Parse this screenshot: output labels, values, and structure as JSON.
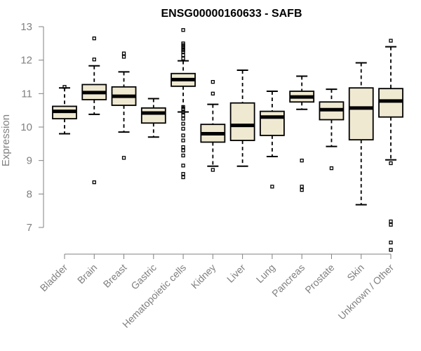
{
  "chart_data": {
    "type": "boxplot",
    "title": "ENSG00000160633 - SAFB",
    "xlabel": "",
    "ylabel": "Expression",
    "ylim": [
      6.2,
      13
    ],
    "yticks": [
      7,
      8,
      9,
      10,
      11,
      12,
      13
    ],
    "grid": false,
    "categories": [
      "Bladder",
      "Brain",
      "Breast",
      "Gastric",
      "Hematopoietic cells",
      "Kidney",
      "Liver",
      "Lung",
      "Pancreas",
      "Prostate",
      "Skin",
      "Unknown / Other"
    ],
    "series": [
      {
        "name": "Bladder",
        "whisker_low": 9.8,
        "q1": 10.25,
        "median": 10.47,
        "q3": 10.62,
        "whisker_high": 11.17,
        "outliers": [
          11.2
        ]
      },
      {
        "name": "Brain",
        "whisker_low": 10.38,
        "q1": 10.82,
        "median": 11.03,
        "q3": 11.27,
        "whisker_high": 11.83,
        "outliers": [
          12.65,
          12.02,
          8.35
        ]
      },
      {
        "name": "Breast",
        "whisker_low": 9.85,
        "q1": 10.65,
        "median": 10.92,
        "q3": 11.2,
        "whisker_high": 11.65,
        "outliers": [
          12.2,
          12.1,
          9.08
        ]
      },
      {
        "name": "Gastric",
        "whisker_low": 9.7,
        "q1": 10.12,
        "median": 10.42,
        "q3": 10.57,
        "whisker_high": 10.85,
        "outliers": []
      },
      {
        "name": "Hematopoietic cells",
        "whisker_low": 10.45,
        "q1": 11.22,
        "median": 11.42,
        "q3": 11.6,
        "whisker_high": 11.98,
        "outliers": [
          12.9,
          12.5,
          12.45,
          12.4,
          12.35,
          12.3,
          12.25,
          12.15,
          12.05,
          10.6,
          10.55,
          10.45,
          10.35,
          10.25,
          10.1,
          9.95,
          9.75,
          9.6,
          9.4,
          9.3,
          9.15,
          8.85,
          8.6,
          8.5
        ]
      },
      {
        "name": "Kidney",
        "whisker_low": 8.83,
        "q1": 9.55,
        "median": 9.8,
        "q3": 10.08,
        "whisker_high": 10.68,
        "outliers": [
          11.35,
          11.0,
          8.72
        ]
      },
      {
        "name": "Liver",
        "whisker_low": 8.83,
        "q1": 9.6,
        "median": 10.05,
        "q3": 10.72,
        "whisker_high": 11.7,
        "outliers": []
      },
      {
        "name": "Lung",
        "whisker_low": 9.12,
        "q1": 9.75,
        "median": 10.3,
        "q3": 10.47,
        "whisker_high": 11.07,
        "outliers": [
          8.22
        ]
      },
      {
        "name": "Pancreas",
        "whisker_low": 10.53,
        "q1": 10.75,
        "median": 10.9,
        "q3": 11.07,
        "whisker_high": 11.52,
        "outliers": [
          9.0,
          8.22,
          8.12
        ]
      },
      {
        "name": "Prostate",
        "whisker_low": 9.42,
        "q1": 10.22,
        "median": 10.52,
        "q3": 10.75,
        "whisker_high": 11.13,
        "outliers": [
          8.77
        ]
      },
      {
        "name": "Skin",
        "whisker_low": 7.68,
        "q1": 9.62,
        "median": 10.57,
        "q3": 11.17,
        "whisker_high": 11.92,
        "outliers": []
      },
      {
        "name": "Unknown / Other",
        "whisker_low": 9.02,
        "q1": 10.3,
        "median": 10.78,
        "q3": 11.15,
        "whisker_high": 12.4,
        "outliers": [
          12.58,
          8.92,
          7.18,
          7.08,
          6.55,
          6.33
        ]
      }
    ]
  }
}
